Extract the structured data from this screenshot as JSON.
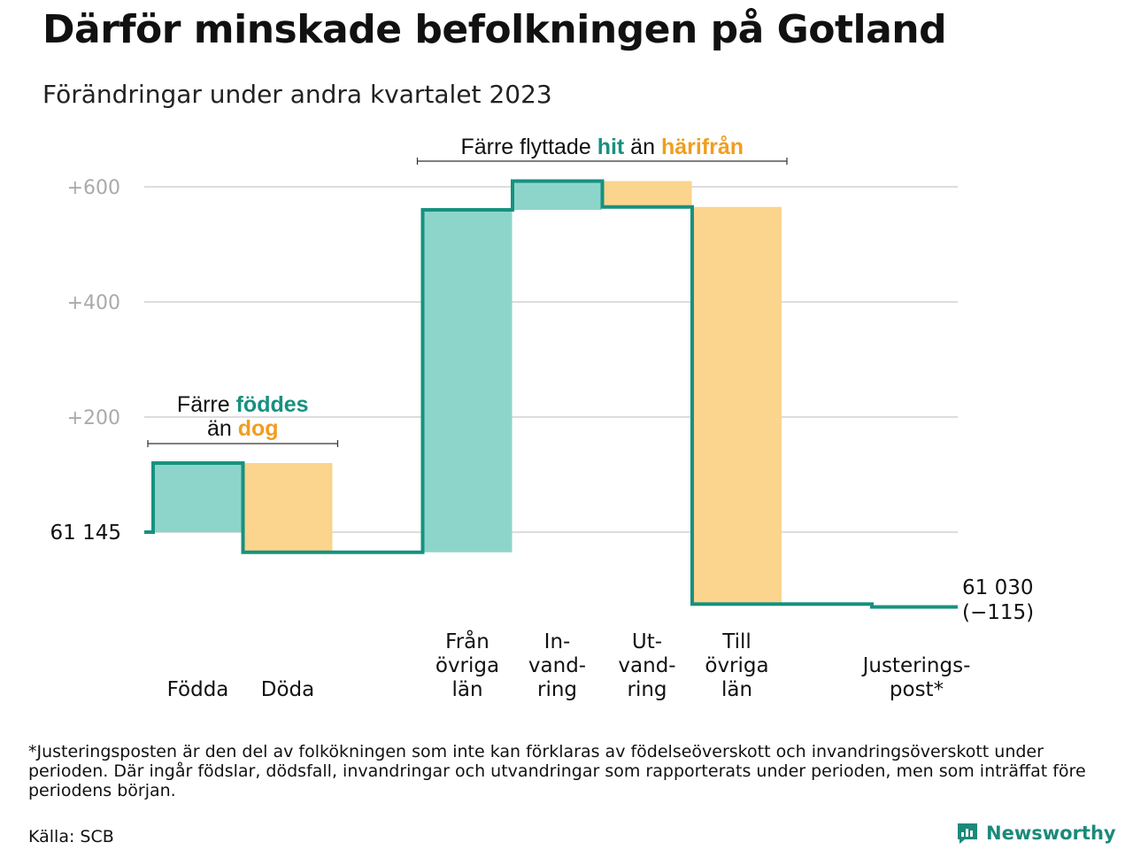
{
  "title": "Därför minskade befolkningen på Gotland",
  "subtitle": "Förändringar under andra kvartalet 2023",
  "colors": {
    "inflow": "#8dd5cb",
    "outflow": "#fbd48d",
    "line": "#17917f",
    "teal_text": "#17917f",
    "orange_text": "#f19d1f",
    "grid": "#dddddd",
    "tick": "#aaaaaa"
  },
  "chart_data": {
    "type": "bar",
    "subtype": "waterfall",
    "start_value": 61145,
    "start_label": "61  145",
    "end_value": 61030,
    "end_label_line1": "61 030",
    "end_label_line2": "(−115)",
    "y_ticks": [
      {
        "value": 200,
        "label": "+200"
      },
      {
        "value": 400,
        "label": "+400"
      },
      {
        "value": 600,
        "label": "+600"
      }
    ],
    "ylim": [
      -123,
      650
    ],
    "grid": true,
    "categories": [
      {
        "label_lines": [
          "Födda"
        ],
        "value": 120,
        "kind": "inflow",
        "slot": 0
      },
      {
        "label_lines": [
          "Döda"
        ],
        "value": -155,
        "kind": "outflow",
        "slot": 1
      },
      {
        "label_lines": [
          "Från",
          "övriga",
          "län"
        ],
        "value": 595,
        "kind": "inflow",
        "slot": 3
      },
      {
        "label_lines": [
          "In-",
          "vand-",
          "ring"
        ],
        "value": 50,
        "kind": "inflow",
        "slot": 4
      },
      {
        "label_lines": [
          "Ut-",
          "vand-",
          "ring"
        ],
        "value": -45,
        "kind": "outflow",
        "slot": 5
      },
      {
        "label_lines": [
          "Till",
          "övriga",
          "län"
        ],
        "value": -690,
        "kind": "outflow",
        "slot": 6
      },
      {
        "label_lines": [
          "Justerings-",
          "post*"
        ],
        "value": -5,
        "kind": "adjustment",
        "slot": 8
      }
    ],
    "annotations": [
      {
        "id": "births",
        "lines": [
          [
            {
              "text": "Färre ",
              "color": "plain"
            },
            {
              "text": "föddes",
              "color": "teal"
            }
          ],
          [
            {
              "text": "än ",
              "color": "plain"
            },
            {
              "text": "dog",
              "color": "orange"
            }
          ]
        ],
        "from_slot": 0,
        "to_slot": 1
      },
      {
        "id": "migration",
        "lines": [
          [
            {
              "text": "Färre flyttade ",
              "color": "plain"
            },
            {
              "text": "hit",
              "color": "teal"
            },
            {
              "text": " än ",
              "color": "plain"
            },
            {
              "text": "härifrån",
              "color": "orange"
            }
          ]
        ],
        "from_slot": 3,
        "to_slot": 6
      }
    ]
  },
  "footnote": "*Justeringsposten är den del av folkökningen som inte kan förklaras av födelseöverskott och invandringsöverskott under perioden. Där ingår födslar, dödsfall, invandringar och utvandringar som rapporterats under perioden, men som inträffat före periodens början.",
  "source": "Källa: SCB",
  "brand": "Newsworthy"
}
